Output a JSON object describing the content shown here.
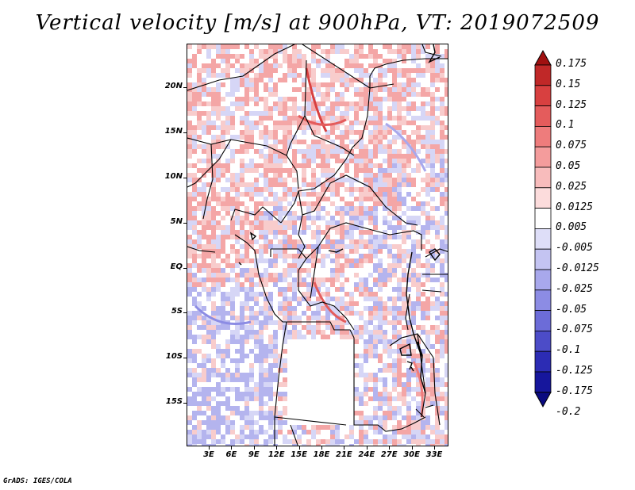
{
  "title": "Vertical velocity [m/s] at 900hPa, VT: 2019072509",
  "footer": "GrADS: IGES/COLA",
  "map": {
    "lat_labels": [
      "20N",
      "15N",
      "10N",
      "5N",
      "EQ",
      "5S",
      "10S",
      "15S"
    ],
    "lon_labels": [
      "3E",
      "6E",
      "9E",
      "12E",
      "15E",
      "18E",
      "21E",
      "24E",
      "27E",
      "30E",
      "33E"
    ]
  },
  "colorbar": {
    "levels": [
      "0.175",
      "0.15",
      "0.125",
      "0.1",
      "0.075",
      "0.05",
      "0.025",
      "0.0125",
      "0.005",
      "-0.005",
      "-0.0125",
      "-0.025",
      "-0.05",
      "-0.075",
      "-0.1",
      "-0.125",
      "-0.175",
      "-0.2"
    ],
    "colors": [
      "#a01010",
      "#c02828",
      "#d84040",
      "#e45c5c",
      "#ee7c7c",
      "#f49c9c",
      "#f8bcbc",
      "#fcdcdc",
      "#ffffff",
      "#dedef8",
      "#c4c4f2",
      "#a8a8ec",
      "#8c8ce4",
      "#6c6cd8",
      "#4c4cc8",
      "#2c2cb4",
      "#16169c",
      "#0a0a80"
    ]
  }
}
